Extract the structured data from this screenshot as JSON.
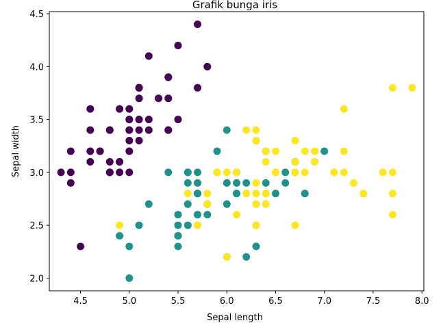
{
  "chart_data": {
    "type": "scatter",
    "title": "Grafik bunga iris",
    "xlabel": "Sepal length",
    "ylabel": "Sepal width",
    "xlim": [
      4.18,
      8.02
    ],
    "ylim": [
      1.88,
      4.52
    ],
    "xticks": [
      "4.5",
      "5.0",
      "5.5",
      "6.0",
      "6.5",
      "7.0",
      "7.5",
      "8.0"
    ],
    "yticks": [
      "2.0",
      "2.5",
      "3.0",
      "3.5",
      "4.0",
      "4.5"
    ],
    "grid": false,
    "legend": "none",
    "series": [
      {
        "color": "#440154",
        "points": [
          [
            5.1,
            3.5
          ],
          [
            4.9,
            3.0
          ],
          [
            4.7,
            3.2
          ],
          [
            4.6,
            3.1
          ],
          [
            5.0,
            3.6
          ],
          [
            5.4,
            3.9
          ],
          [
            4.6,
            3.4
          ],
          [
            5.0,
            3.4
          ],
          [
            4.4,
            2.9
          ],
          [
            4.9,
            3.1
          ],
          [
            5.4,
            3.7
          ],
          [
            4.8,
            3.4
          ],
          [
            4.8,
            3.0
          ],
          [
            4.3,
            3.0
          ],
          [
            5.8,
            4.0
          ],
          [
            5.7,
            4.4
          ],
          [
            5.4,
            3.9
          ],
          [
            5.1,
            3.5
          ],
          [
            5.7,
            3.8
          ],
          [
            5.1,
            3.8
          ],
          [
            5.4,
            3.4
          ],
          [
            5.1,
            3.7
          ],
          [
            4.6,
            3.6
          ],
          [
            5.1,
            3.3
          ],
          [
            4.8,
            3.4
          ],
          [
            5.0,
            3.0
          ],
          [
            5.0,
            3.4
          ],
          [
            5.2,
            3.5
          ],
          [
            5.2,
            3.4
          ],
          [
            4.7,
            3.2
          ],
          [
            4.8,
            3.1
          ],
          [
            5.4,
            3.4
          ],
          [
            5.2,
            4.1
          ],
          [
            5.5,
            4.2
          ],
          [
            4.9,
            3.1
          ],
          [
            5.0,
            3.2
          ],
          [
            5.5,
            3.5
          ],
          [
            4.9,
            3.6
          ],
          [
            4.4,
            3.0
          ],
          [
            5.1,
            3.4
          ],
          [
            5.0,
            3.5
          ],
          [
            4.5,
            2.3
          ],
          [
            4.4,
            3.2
          ],
          [
            5.0,
            3.5
          ],
          [
            5.1,
            3.8
          ],
          [
            4.8,
            3.0
          ],
          [
            5.1,
            3.8
          ],
          [
            4.6,
            3.2
          ],
          [
            5.3,
            3.7
          ],
          [
            5.0,
            3.3
          ]
        ]
      },
      {
        "color": "#21918c",
        "points": [
          [
            7.0,
            3.2
          ],
          [
            6.4,
            3.2
          ],
          [
            6.9,
            3.1
          ],
          [
            5.5,
            2.3
          ],
          [
            6.5,
            2.8
          ],
          [
            5.7,
            2.8
          ],
          [
            6.3,
            3.3
          ],
          [
            4.9,
            2.4
          ],
          [
            6.6,
            2.9
          ],
          [
            5.2,
            2.7
          ],
          [
            5.0,
            2.0
          ],
          [
            5.9,
            3.0
          ],
          [
            6.0,
            2.2
          ],
          [
            6.1,
            2.9
          ],
          [
            5.6,
            2.9
          ],
          [
            6.7,
            3.1
          ],
          [
            5.6,
            3.0
          ],
          [
            5.8,
            2.7
          ],
          [
            6.2,
            2.2
          ],
          [
            5.6,
            2.5
          ],
          [
            5.9,
            3.2
          ],
          [
            6.1,
            2.8
          ],
          [
            6.3,
            2.5
          ],
          [
            6.1,
            2.8
          ],
          [
            6.4,
            2.9
          ],
          [
            6.6,
            3.0
          ],
          [
            6.8,
            2.8
          ],
          [
            6.7,
            3.0
          ],
          [
            6.0,
            2.9
          ],
          [
            5.7,
            2.6
          ],
          [
            5.5,
            2.4
          ],
          [
            5.5,
            2.4
          ],
          [
            5.8,
            2.7
          ],
          [
            6.0,
            2.7
          ],
          [
            5.4,
            3.0
          ],
          [
            6.0,
            3.4
          ],
          [
            6.7,
            3.1
          ],
          [
            6.3,
            2.3
          ],
          [
            5.6,
            3.0
          ],
          [
            5.5,
            2.5
          ],
          [
            5.5,
            2.6
          ],
          [
            6.1,
            3.0
          ],
          [
            5.8,
            2.6
          ],
          [
            5.0,
            2.3
          ],
          [
            5.6,
            2.7
          ],
          [
            5.7,
            3.0
          ],
          [
            5.7,
            2.9
          ],
          [
            6.2,
            2.9
          ],
          [
            5.1,
            2.5
          ],
          [
            5.7,
            2.8
          ]
        ]
      },
      {
        "color": "#fde725",
        "points": [
          [
            6.3,
            3.3
          ],
          [
            5.8,
            2.7
          ],
          [
            7.1,
            3.0
          ],
          [
            6.3,
            2.9
          ],
          [
            6.5,
            3.0
          ],
          [
            7.6,
            3.0
          ],
          [
            4.9,
            2.5
          ],
          [
            7.3,
            2.9
          ],
          [
            6.7,
            2.5
          ],
          [
            7.2,
            3.6
          ],
          [
            6.5,
            3.2
          ],
          [
            6.4,
            2.7
          ],
          [
            6.8,
            3.0
          ],
          [
            5.7,
            2.5
          ],
          [
            5.8,
            2.8
          ],
          [
            6.4,
            3.2
          ],
          [
            6.5,
            3.0
          ],
          [
            7.7,
            3.8
          ],
          [
            7.7,
            2.6
          ],
          [
            6.0,
            2.2
          ],
          [
            6.9,
            3.2
          ],
          [
            5.6,
            2.8
          ],
          [
            7.7,
            2.8
          ],
          [
            6.3,
            2.7
          ],
          [
            6.7,
            3.3
          ],
          [
            7.2,
            3.2
          ],
          [
            6.2,
            2.8
          ],
          [
            6.1,
            3.0
          ],
          [
            6.4,
            2.8
          ],
          [
            7.2,
            3.0
          ],
          [
            7.4,
            2.8
          ],
          [
            7.9,
            3.8
          ],
          [
            6.4,
            2.8
          ],
          [
            6.3,
            2.8
          ],
          [
            6.1,
            2.6
          ],
          [
            7.7,
            3.0
          ],
          [
            6.3,
            3.4
          ],
          [
            6.4,
            3.1
          ],
          [
            6.0,
            3.0
          ],
          [
            6.9,
            3.1
          ],
          [
            6.7,
            3.1
          ],
          [
            6.9,
            3.1
          ],
          [
            5.8,
            2.7
          ],
          [
            6.8,
            3.2
          ],
          [
            6.7,
            3.3
          ],
          [
            6.7,
            3.0
          ],
          [
            6.3,
            2.5
          ],
          [
            6.5,
            3.0
          ],
          [
            6.2,
            3.4
          ],
          [
            5.9,
            3.0
          ]
        ]
      }
    ]
  }
}
